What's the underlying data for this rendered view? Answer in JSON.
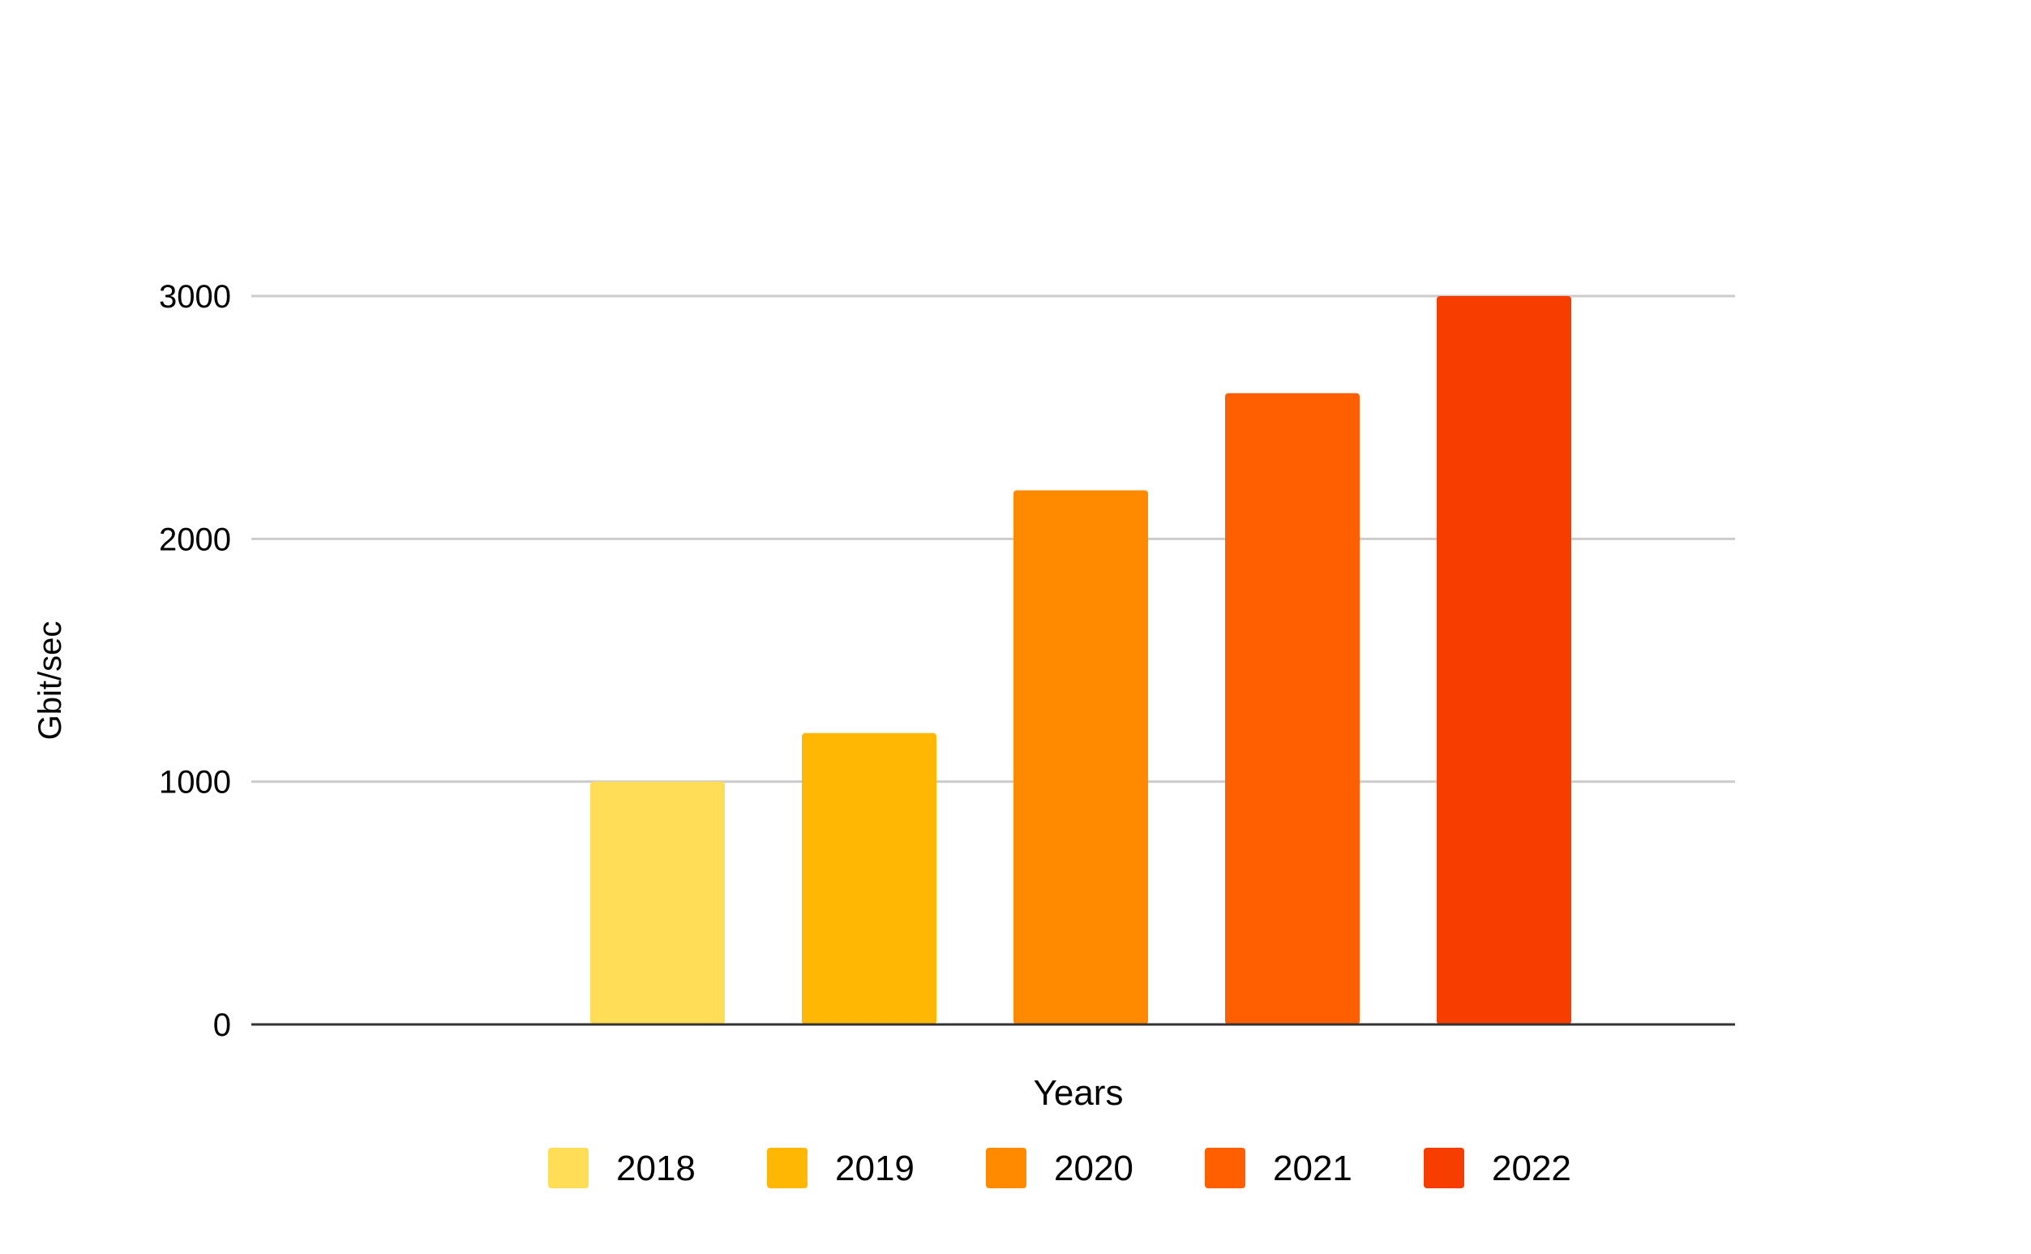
{
  "chart_data": {
    "type": "bar",
    "title": "",
    "xlabel": "Years",
    "ylabel": "Gbit/sec",
    "ylim": [
      0,
      3000
    ],
    "yticks": [
      0,
      1000,
      2000,
      3000
    ],
    "grid": true,
    "legend_position": "bottom",
    "series": [
      {
        "name": "2018",
        "value": 1000,
        "color": "#FFDD57"
      },
      {
        "name": "2019",
        "value": 1200,
        "color": "#FFB703"
      },
      {
        "name": "2020",
        "value": 2200,
        "color": "#FF8A00"
      },
      {
        "name": "2021",
        "value": 2600,
        "color": "#FF5F00"
      },
      {
        "name": "2022",
        "value": 3000,
        "color": "#F73E00"
      }
    ]
  }
}
